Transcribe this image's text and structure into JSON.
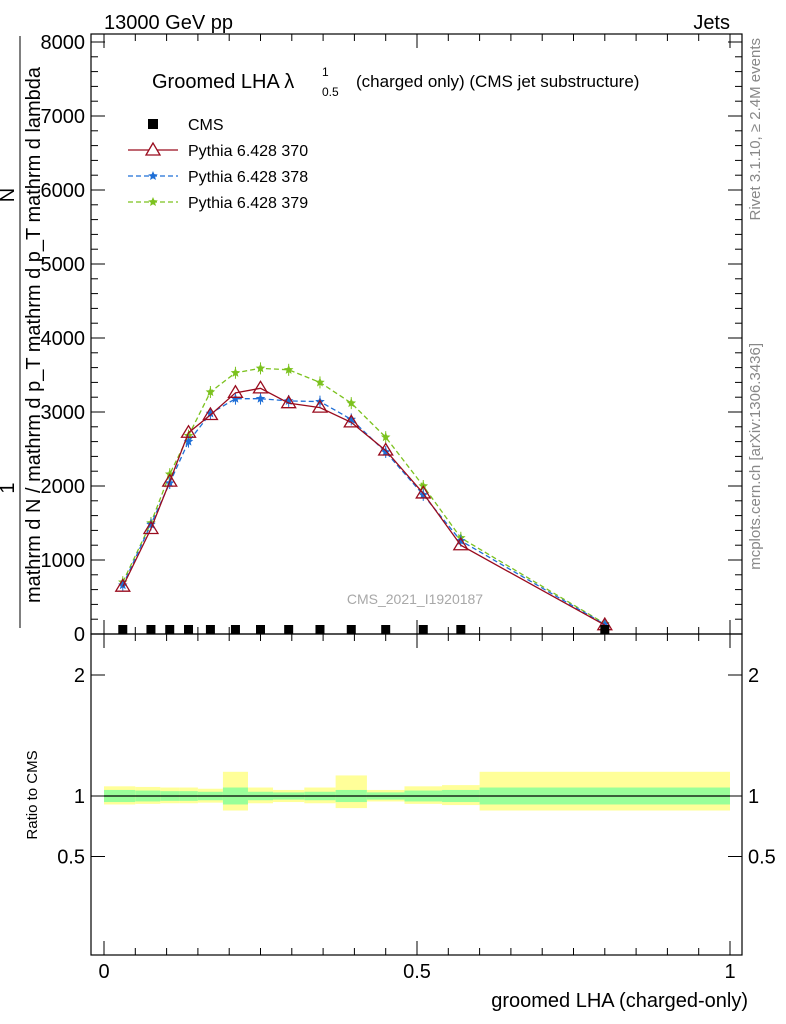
{
  "header": {
    "left": "13000 GeV pp",
    "right": "Jets"
  },
  "side_labels": {
    "rivet": "Rivet 3.1.10, ≥ 2.4M events",
    "mcplots": "mcplots.cern.ch [arXiv:1306.3436]"
  },
  "watermark": "CMS_2021_I1920187",
  "colors": {
    "cms": "#000000",
    "p370": "#9a0c1e",
    "p378": "#1f6fd6",
    "p379": "#7cc21f",
    "band_inner": "#99ff99",
    "band_outer": "#ffff99"
  },
  "chart_data": [
    {
      "type": "line",
      "title": "Groomed LHA λ",
      "title_sup": "1",
      "title_sub": "0.5",
      "title_suffix": "(charged only) (CMS jet substructure)",
      "xlabel": "groomed LHA (charged-only)",
      "ylabel_main": "mathrm d N / mathrm d p_T mathrm d p_T mathrm d lambda",
      "ylabel_sub": "T",
      "ylabel_numerator": "mathrm d",
      "ylabel_numerator2": "N",
      "ylabel_one": "1",
      "xlim": [
        0,
        1
      ],
      "ylim": [
        0,
        8000
      ],
      "yticks": [
        0,
        1000,
        2000,
        3000,
        4000,
        5000,
        6000,
        7000,
        8000
      ],
      "ytick_labels": [
        "0",
        "1000",
        "2000",
        "3000",
        "4000",
        "5000",
        "6000",
        "7000",
        "8000"
      ],
      "legend": {
        "placement": "top-left"
      },
      "series": [
        {
          "name": "CMS",
          "marker": "square",
          "x": [
            0.03,
            0.075,
            0.105,
            0.135,
            0.17,
            0.21,
            0.25,
            0.295,
            0.345,
            0.395,
            0.45,
            0.51,
            0.57,
            0.8
          ],
          "y": [
            0,
            0,
            0,
            0,
            0,
            0,
            0,
            0,
            0,
            0,
            0,
            0,
            0,
            0
          ]
        },
        {
          "name": "Pythia 6.428 370",
          "marker": "triangle-open",
          "x": [
            0.03,
            0.075,
            0.105,
            0.135,
            0.17,
            0.21,
            0.25,
            0.295,
            0.345,
            0.395,
            0.45,
            0.51,
            0.57,
            0.8
          ],
          "y": [
            640,
            1420,
            2060,
            2720,
            2960,
            3260,
            3320,
            3120,
            3060,
            2860,
            2480,
            1900,
            1200,
            120
          ]
        },
        {
          "name": "Pythia 6.428 378",
          "marker": "star",
          "x": [
            0.03,
            0.075,
            0.105,
            0.135,
            0.17,
            0.21,
            0.25,
            0.295,
            0.345,
            0.395,
            0.45,
            0.51,
            0.57,
            0.8
          ],
          "y": [
            660,
            1480,
            2040,
            2600,
            2980,
            3180,
            3180,
            3150,
            3140,
            2900,
            2460,
            1880,
            1260,
            130
          ]
        },
        {
          "name": "Pythia 6.428 379",
          "marker": "star",
          "x": [
            0.03,
            0.075,
            0.105,
            0.135,
            0.17,
            0.21,
            0.25,
            0.295,
            0.345,
            0.395,
            0.45,
            0.51,
            0.57,
            0.8
          ],
          "y": [
            700,
            1500,
            2160,
            2680,
            3270,
            3530,
            3590,
            3570,
            3400,
            3120,
            2660,
            2000,
            1300,
            140
          ]
        }
      ]
    },
    {
      "type": "area",
      "ylabel": "Ratio to CMS",
      "xlim": [
        0,
        1
      ],
      "ylim": [
        0.38,
        2.3
      ],
      "yticks": [
        0.5,
        1,
        2
      ],
      "ytick_labels": [
        "0.5",
        "1",
        "2"
      ],
      "xticks": [
        0,
        0.5,
        1
      ],
      "xtick_labels": [
        "0",
        "0.5",
        "1"
      ],
      "bins": [
        {
          "lo": 0.0,
          "hi": 0.05,
          "inner": [
            0.95,
            1.05
          ],
          "outer": [
            0.93,
            1.08
          ]
        },
        {
          "lo": 0.05,
          "hi": 0.09,
          "inner": [
            0.955,
            1.045
          ],
          "outer": [
            0.935,
            1.075
          ]
        },
        {
          "lo": 0.09,
          "hi": 0.12,
          "inner": [
            0.96,
            1.04
          ],
          "outer": [
            0.94,
            1.07
          ]
        },
        {
          "lo": 0.12,
          "hi": 0.15,
          "inner": [
            0.96,
            1.04
          ],
          "outer": [
            0.94,
            1.07
          ]
        },
        {
          "lo": 0.15,
          "hi": 0.19,
          "inner": [
            0.965,
            1.035
          ],
          "outer": [
            0.945,
            1.06
          ]
        },
        {
          "lo": 0.19,
          "hi": 0.23,
          "inner": [
            0.93,
            1.07
          ],
          "outer": [
            0.88,
            1.2
          ]
        },
        {
          "lo": 0.23,
          "hi": 0.27,
          "inner": [
            0.965,
            1.035
          ],
          "outer": [
            0.94,
            1.07
          ]
        },
        {
          "lo": 0.27,
          "hi": 0.32,
          "inner": [
            0.97,
            1.03
          ],
          "outer": [
            0.95,
            1.05
          ]
        },
        {
          "lo": 0.32,
          "hi": 0.37,
          "inner": [
            0.965,
            1.035
          ],
          "outer": [
            0.94,
            1.07
          ]
        },
        {
          "lo": 0.37,
          "hi": 0.42,
          "inner": [
            0.95,
            1.05
          ],
          "outer": [
            0.9,
            1.17
          ]
        },
        {
          "lo": 0.42,
          "hi": 0.48,
          "inner": [
            0.97,
            1.03
          ],
          "outer": [
            0.955,
            1.05
          ]
        },
        {
          "lo": 0.48,
          "hi": 0.54,
          "inner": [
            0.955,
            1.045
          ],
          "outer": [
            0.935,
            1.08
          ]
        },
        {
          "lo": 0.54,
          "hi": 0.6,
          "inner": [
            0.95,
            1.05
          ],
          "outer": [
            0.925,
            1.09
          ]
        },
        {
          "lo": 0.6,
          "hi": 1.0,
          "inner": [
            0.93,
            1.07
          ],
          "outer": [
            0.88,
            1.2
          ]
        }
      ]
    }
  ]
}
